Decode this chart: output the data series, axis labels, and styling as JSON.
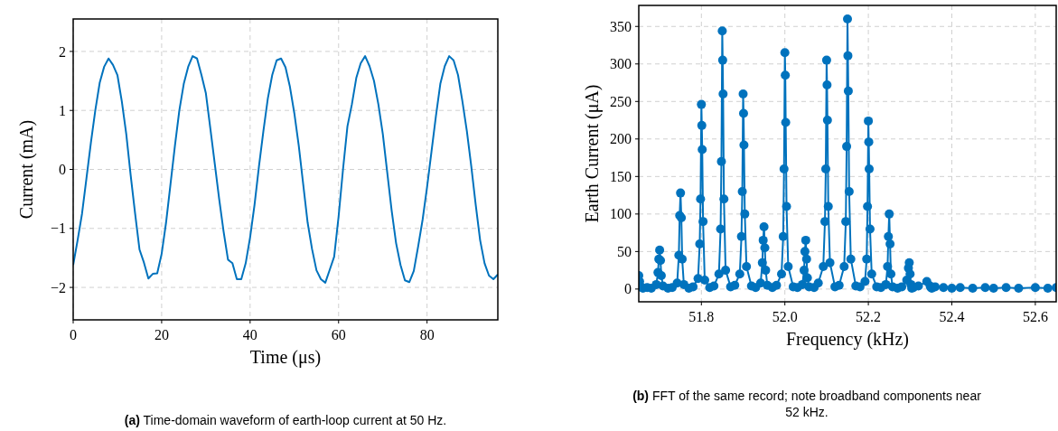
{
  "chart_data": [
    {
      "type": "line",
      "xlabel": "Time (μs)",
      "ylabel": "Current (mA)",
      "xlim": [
        0,
        96
      ],
      "ylim": [
        -2.55,
        2.55
      ],
      "xticks": [
        0,
        20,
        40,
        60,
        80
      ],
      "yticks": [
        {
          "value": -2,
          "label": "−2"
        },
        {
          "value": -1,
          "label": "−1"
        },
        0,
        1,
        2
      ],
      "grid": true,
      "marker": "none",
      "line_style": "solid",
      "annotations": [
        "(a) Time-domain waveform of earth-loop current at 50 Hz."
      ],
      "series": [
        {
          "color": "#0072bd",
          "x": [
            0,
            1,
            2,
            3,
            4,
            5,
            6,
            7,
            8,
            9,
            10,
            11,
            12,
            13,
            14,
            15,
            16,
            17,
            18,
            19,
            20,
            21,
            22,
            23,
            24,
            25,
            26,
            27,
            28,
            29,
            30,
            31,
            32,
            33,
            34,
            35,
            36,
            37,
            38,
            39,
            40,
            41,
            42,
            43,
            44,
            45,
            46,
            47,
            48,
            49,
            50,
            51,
            52,
            53,
            54,
            55,
            56,
            57,
            58,
            59,
            60,
            61,
            62,
            63,
            64,
            65,
            66,
            67,
            68,
            69,
            70,
            71,
            72,
            73,
            74,
            75,
            76,
            77,
            78,
            79,
            80,
            81,
            82,
            83,
            84,
            85,
            86,
            87,
            88,
            89,
            90,
            91,
            92,
            93,
            94,
            95,
            96
          ],
          "values": [
            -1.62,
            -1.2,
            -0.75,
            -0.15,
            0.45,
            1.0,
            1.47,
            1.74,
            1.88,
            1.77,
            1.6,
            1.15,
            0.6,
            -0.1,
            -0.75,
            -1.36,
            -1.58,
            -1.85,
            -1.77,
            -1.76,
            -1.43,
            -0.9,
            -0.25,
            0.4,
            1.0,
            1.45,
            1.74,
            1.92,
            1.88,
            1.6,
            1.29,
            0.7,
            0.1,
            -0.5,
            -1.05,
            -1.53,
            -1.59,
            -1.86,
            -1.86,
            -1.59,
            -1.15,
            -0.6,
            0.05,
            0.65,
            1.2,
            1.6,
            1.85,
            1.88,
            1.73,
            1.4,
            0.95,
            0.4,
            -0.25,
            -0.9,
            -1.35,
            -1.71,
            -1.86,
            -1.92,
            -1.7,
            -1.48,
            -0.8,
            0.0,
            0.73,
            1.1,
            1.55,
            1.8,
            1.92,
            1.75,
            1.5,
            1.1,
            0.6,
            -0.05,
            -0.7,
            -1.25,
            -1.62,
            -1.88,
            -1.91,
            -1.72,
            -1.3,
            -0.85,
            -0.3,
            0.3,
            0.9,
            1.45,
            1.75,
            1.92,
            1.85,
            1.6,
            1.15,
            0.65,
            0.05,
            -0.6,
            -1.2,
            -1.59,
            -1.8,
            -1.86,
            -1.78
          ]
        }
      ]
    },
    {
      "type": "line",
      "xlabel": "Frequency (kHz)",
      "ylabel": "Earth Current (μA)",
      "xlim": [
        51.65,
        52.65
      ],
      "ylim": [
        -17,
        378
      ],
      "xticks": [
        51.8,
        {
          "value": 52,
          "label": "52.0"
        },
        52.2,
        52.4,
        52.6
      ],
      "yticks": [
        0,
        50,
        100,
        150,
        200,
        250,
        300,
        350
      ],
      "grid": true,
      "marker": "circle",
      "line_style": "solid",
      "annotations": [
        "(b) FFT of the same record; note broadband components near 52 kHz."
      ],
      "series": [
        {
          "color": "#0072bd",
          "x": [
            51.65,
            51.652,
            51.655,
            51.66,
            51.67,
            51.68,
            51.692,
            51.696,
            51.698,
            51.7,
            51.702,
            51.704,
            51.708,
            51.72,
            51.73,
            51.742,
            51.746,
            51.748,
            51.75,
            51.752,
            51.754,
            51.758,
            51.77,
            51.78,
            51.792,
            51.796,
            51.798,
            51.8,
            51.801,
            51.802,
            51.804,
            51.808,
            51.82,
            51.83,
            51.842,
            51.846,
            51.848,
            51.85,
            51.851,
            51.852,
            51.854,
            51.858,
            51.87,
            51.88,
            51.892,
            51.896,
            51.898,
            51.9,
            51.901,
            51.902,
            51.904,
            51.908,
            51.92,
            51.93,
            51.942,
            51.946,
            51.948,
            51.95,
            51.952,
            51.954,
            51.958,
            51.97,
            51.98,
            51.992,
            51.996,
            51.998,
            52.0,
            52.001,
            52.002,
            52.004,
            52.008,
            52.02,
            52.03,
            52.042,
            52.046,
            52.048,
            52.05,
            52.052,
            52.054,
            52.058,
            52.07,
            52.08,
            52.092,
            52.096,
            52.098,
            52.1,
            52.101,
            52.102,
            52.104,
            52.108,
            52.12,
            52.13,
            52.142,
            52.146,
            52.148,
            52.15,
            52.151,
            52.152,
            52.154,
            52.158,
            52.17,
            52.18,
            52.192,
            52.196,
            52.198,
            52.2,
            52.201,
            52.202,
            52.204,
            52.208,
            52.22,
            52.23,
            52.242,
            52.246,
            52.248,
            52.25,
            52.252,
            52.254,
            52.258,
            52.27,
            52.28,
            52.292,
            52.296,
            52.298,
            52.3,
            52.302,
            52.304,
            52.308,
            52.32,
            52.34,
            52.348,
            52.35,
            52.352,
            52.36,
            52.38,
            52.4,
            52.42,
            52.45,
            52.48,
            52.5,
            52.53,
            52.56,
            52.6,
            52.63,
            52.65
          ],
          "values": [
            18,
            10,
            3,
            1,
            2,
            1,
            6,
            22,
            40,
            52,
            38,
            18,
            4,
            1,
            2,
            8,
            45,
            98,
            128,
            95,
            40,
            6,
            1,
            3,
            14,
            60,
            120,
            246,
            218,
            186,
            90,
            12,
            2,
            4,
            20,
            80,
            170,
            344,
            305,
            260,
            120,
            25,
            3,
            5,
            20,
            70,
            130,
            260,
            234,
            192,
            100,
            30,
            4,
            2,
            8,
            35,
            65,
            83,
            55,
            25,
            5,
            2,
            5,
            20,
            70,
            160,
            315,
            285,
            222,
            110,
            30,
            3,
            2,
            6,
            25,
            50,
            65,
            40,
            15,
            3,
            2,
            8,
            30,
            90,
            160,
            305,
            272,
            225,
            110,
            35,
            3,
            5,
            30,
            90,
            190,
            360,
            311,
            264,
            130,
            40,
            4,
            3,
            10,
            40,
            110,
            224,
            196,
            160,
            80,
            20,
            3,
            2,
            6,
            30,
            70,
            100,
            60,
            20,
            3,
            1,
            3,
            12,
            28,
            35,
            20,
            6,
            1,
            2,
            4,
            10,
            4,
            2,
            1,
            3,
            2,
            1,
            2,
            1,
            2,
            1,
            2,
            1,
            2,
            1,
            2
          ]
        }
      ]
    }
  ]
}
